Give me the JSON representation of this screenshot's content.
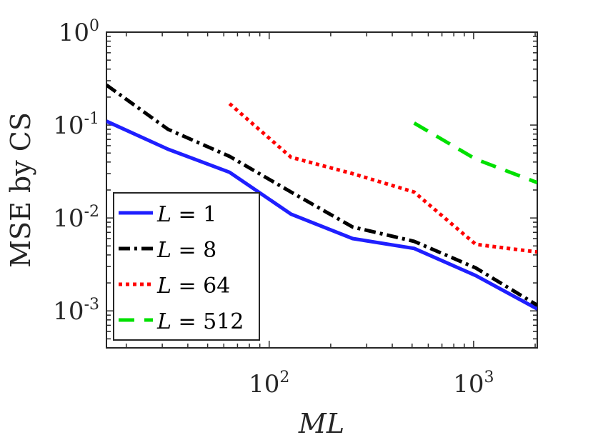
{
  "chart_data": {
    "type": "line",
    "xscale": "log",
    "yscale": "log",
    "xlim": [
      16,
      2048
    ],
    "ylim": [
      0.0004,
      1
    ],
    "xlabel": "ML",
    "ylabel": "MSE by CS",
    "xticks": [
      {
        "value": 100,
        "base": "10",
        "exp": "2"
      },
      {
        "value": 1000,
        "base": "10",
        "exp": "3"
      }
    ],
    "yticks": [
      {
        "value": 1,
        "base": "10",
        "exp": "0"
      },
      {
        "value": 0.1,
        "base": "10",
        "exp": "-1"
      },
      {
        "value": 0.01,
        "base": "10",
        "exp": "-2"
      },
      {
        "value": 0.001,
        "base": "10",
        "exp": "-3"
      }
    ],
    "legend_position": "bottom-left",
    "series": [
      {
        "name": "L = 1",
        "var": "L",
        "eq": "= 1",
        "color": "#1f1fff",
        "style": "solid",
        "x": [
          16,
          32,
          64,
          128,
          256,
          512,
          1024,
          2048
        ],
        "y": [
          0.11,
          0.055,
          0.031,
          0.011,
          0.006,
          0.0047,
          0.0024,
          0.00105
        ]
      },
      {
        "name": "L = 8",
        "var": "L",
        "eq": "= 8",
        "color": "#000000",
        "style": "dashdot",
        "x": [
          16,
          32,
          64,
          128,
          256,
          512,
          1024,
          2048
        ],
        "y": [
          0.27,
          0.09,
          0.046,
          0.019,
          0.008,
          0.0056,
          0.0029,
          0.00115
        ]
      },
      {
        "name": "L = 64",
        "var": "L",
        "eq": "= 64",
        "color": "#ff0000",
        "style": "dotted",
        "x": [
          64,
          128,
          256,
          512,
          1024,
          2048
        ],
        "y": [
          0.17,
          0.045,
          0.03,
          0.019,
          0.0052,
          0.0043
        ]
      },
      {
        "name": "L = 512",
        "var": "L",
        "eq": "= 512",
        "color": "#00e000",
        "style": "dashed",
        "x": [
          512,
          1024,
          2048
        ],
        "y": [
          0.105,
          0.043,
          0.024
        ]
      }
    ]
  }
}
